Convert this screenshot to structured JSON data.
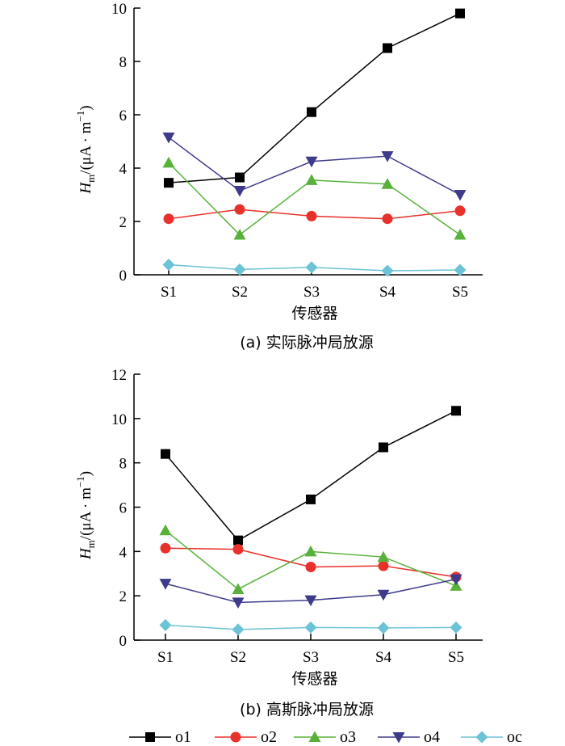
{
  "chart_data": [
    {
      "type": "line",
      "caption": "(a)  实际脉冲局放源",
      "xlabel": "传感器",
      "ylabel": {
        "main": "H",
        "sub": "m",
        "rest": "/(μA · m",
        "sup": "−1",
        "close": ")"
      },
      "categories": [
        "S1",
        "S2",
        "S3",
        "S4",
        "S5"
      ],
      "ylim": [
        0,
        10
      ],
      "yticks": [
        0,
        2,
        4,
        6,
        8,
        10
      ],
      "series": [
        {
          "name": "o1",
          "values": [
            3.45,
            3.65,
            6.1,
            8.5,
            9.8
          ]
        },
        {
          "name": "o2",
          "values": [
            2.1,
            2.45,
            2.2,
            2.1,
            2.4
          ]
        },
        {
          "name": "o3",
          "values": [
            4.2,
            1.5,
            3.55,
            3.4,
            1.5
          ]
        },
        {
          "name": "o4",
          "values": [
            5.15,
            3.15,
            4.25,
            4.45,
            3.0
          ]
        },
        {
          "name": "oc",
          "values": [
            0.38,
            0.2,
            0.28,
            0.15,
            0.18
          ]
        }
      ]
    },
    {
      "type": "line",
      "caption": "(b)  高斯脉冲局放源",
      "xlabel": "传感器",
      "ylabel": {
        "main": "H",
        "sub": "m",
        "rest": "/(μA · m",
        "sup": "−1",
        "close": ")"
      },
      "categories": [
        "S1",
        "S2",
        "S3",
        "S4",
        "S5"
      ],
      "ylim": [
        0,
        12
      ],
      "yticks": [
        0,
        2,
        4,
        6,
        8,
        10,
        12
      ],
      "series": [
        {
          "name": "o1",
          "values": [
            8.4,
            4.5,
            6.35,
            8.7,
            10.35
          ]
        },
        {
          "name": "o2",
          "values": [
            4.15,
            4.1,
            3.3,
            3.35,
            2.85
          ]
        },
        {
          "name": "o3",
          "values": [
            4.95,
            2.3,
            4.0,
            3.75,
            2.45
          ]
        },
        {
          "name": "o4",
          "values": [
            2.55,
            1.7,
            1.8,
            2.05,
            2.75
          ]
        },
        {
          "name": "oc",
          "values": [
            0.68,
            0.48,
            0.57,
            0.55,
            0.57
          ]
        }
      ]
    }
  ],
  "style": {
    "o1": {
      "color": "#000000",
      "marker": "square"
    },
    "o2": {
      "color": "#e8312a",
      "marker": "circle"
    },
    "o3": {
      "color": "#58b23a",
      "marker": "triangle-up"
    },
    "o4": {
      "color": "#3f3b8c",
      "marker": "triangle-down"
    },
    "oc": {
      "color": "#6cc3d5",
      "marker": "diamond"
    }
  },
  "legend": [
    "o1",
    "o2",
    "o3",
    "o4",
    "oc"
  ]
}
